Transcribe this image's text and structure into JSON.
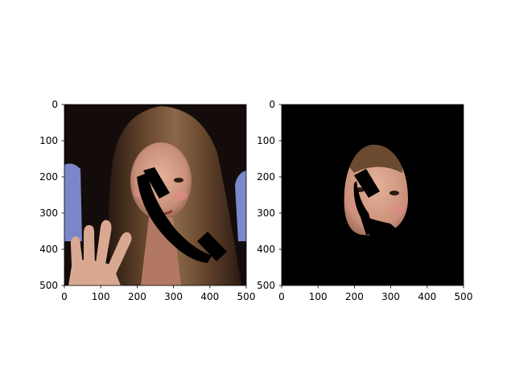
{
  "chart_data": [
    {
      "type": "image",
      "panel": "left",
      "content": "photo of a girl with long brown hair waving, with a black telephone-handset shape overlaid on her face",
      "x_ticks": [
        0,
        100,
        200,
        300,
        400,
        500
      ],
      "y_ticks": [
        0,
        100,
        200,
        300,
        400,
        500
      ],
      "xlim": [
        0,
        500
      ],
      "ylim": [
        500,
        0
      ],
      "grid": false,
      "title": "",
      "xlabel": "",
      "ylabel": ""
    },
    {
      "type": "image",
      "panel": "right",
      "content": "black background with only the oval face region visible, telephone-handset shape overlaid",
      "x_ticks": [
        0,
        100,
        200,
        300,
        400,
        500
      ],
      "y_ticks": [
        0,
        100,
        200,
        300,
        400,
        500
      ],
      "xlim": [
        0,
        500
      ],
      "ylim": [
        500,
        0
      ],
      "grid": false,
      "title": "",
      "xlabel": "",
      "ylabel": ""
    }
  ],
  "colors": {
    "photo_background": "#1a0f0c",
    "hair": "#5a3a22",
    "skin": "#d9a58c",
    "cheek": "#e08a8a",
    "sleeve": "#7a86c8",
    "mask": "#000000"
  },
  "icons": {
    "overlay": "telephone-handset-icon"
  }
}
